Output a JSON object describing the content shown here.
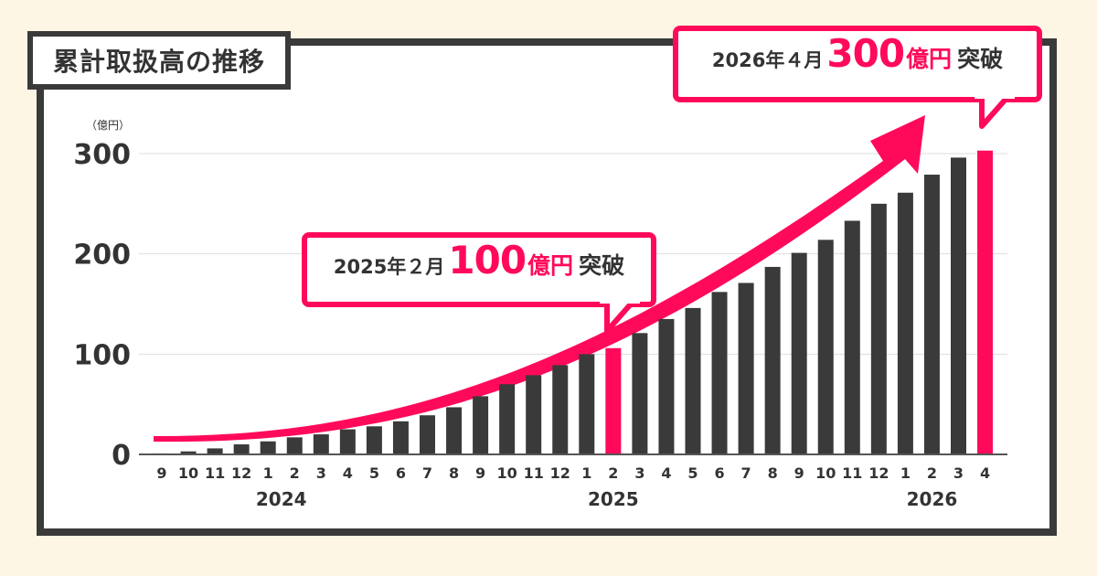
{
  "title": "累計取扱高の推移",
  "y_unit": "（億円）",
  "callouts": {
    "top": {
      "date": "2026年４月",
      "value": "300",
      "unit": "億円",
      "suffix": "突破"
    },
    "mid": {
      "date": "2025年２月",
      "value": "100",
      "unit": "億円",
      "suffix": "突破"
    }
  },
  "colors": {
    "bar": "#3a3a3a",
    "highlight": "#ff0a5a",
    "frame": "#3a3a3a",
    "background": "#fdf6e4"
  },
  "chart_data": {
    "type": "bar",
    "ylim": [
      0,
      300
    ],
    "yticks": [
      0,
      100,
      200,
      300
    ],
    "categories": [
      "9",
      "10",
      "11",
      "12",
      "1",
      "2",
      "3",
      "4",
      "5",
      "6",
      "7",
      "8",
      "9",
      "10",
      "11",
      "12",
      "1",
      "2",
      "3",
      "4",
      "5",
      "6",
      "7",
      "8",
      "9",
      "10",
      "11",
      "12",
      "1",
      "2",
      "3",
      "4"
    ],
    "year_labels": [
      {
        "label": "2024",
        "index": 4.5
      },
      {
        "label": "2025",
        "index": 17
      },
      {
        "label": "2026",
        "index": 29
      }
    ],
    "values": [
      1,
      3,
      6,
      10,
      13,
      17,
      20,
      25,
      28,
      33,
      39,
      47,
      58,
      70,
      79,
      89,
      100,
      106,
      121,
      135,
      146,
      162,
      171,
      187,
      201,
      214,
      233,
      250,
      261,
      279,
      296,
      303
    ],
    "highlight_indices": [
      17,
      31
    ]
  }
}
